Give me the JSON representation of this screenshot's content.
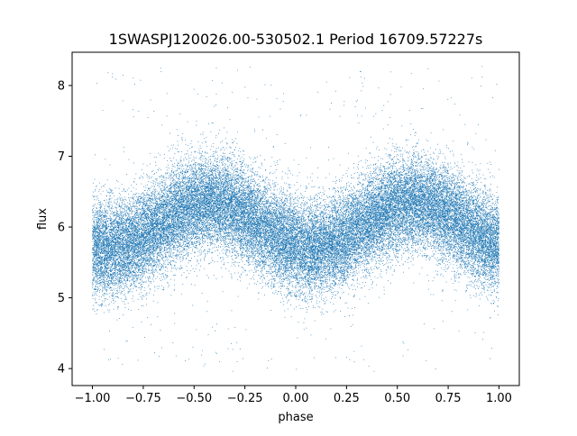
{
  "chart_data": {
    "type": "scatter",
    "title": "1SWASPJ120026.00-530502.1 Period 16709.57227s",
    "xlabel": "phase",
    "ylabel": "flux",
    "xlim": [
      -1.1,
      1.1
    ],
    "ylim": [
      3.76,
      8.47
    ],
    "x_ticks": [
      -1.0,
      -0.75,
      -0.5,
      -0.25,
      0.0,
      0.25,
      0.5,
      0.75,
      1.0
    ],
    "x_tick_labels": [
      "−1.00",
      "−0.75",
      "−0.50",
      "−0.25",
      "0.00",
      "0.25",
      "0.50",
      "0.75",
      "1.00"
    ],
    "y_ticks": [
      4,
      5,
      6,
      7,
      8
    ],
    "y_tick_labels": [
      "4",
      "5",
      "6",
      "7",
      "8"
    ],
    "grid": false,
    "legend": false,
    "point_color": "#1f77b4",
    "series": [
      {
        "model": "sinusoid",
        "phase_range": [
          -1.0,
          1.0
        ],
        "mean_flux": 6.02,
        "amplitude": 0.32,
        "peak_phase": -0.42,
        "cycles_per_phase_unit": 1,
        "scatter_sigma": 0.33,
        "outlier_range": [
          3.95,
          8.3
        ],
        "point_count": 40000
      }
    ]
  }
}
